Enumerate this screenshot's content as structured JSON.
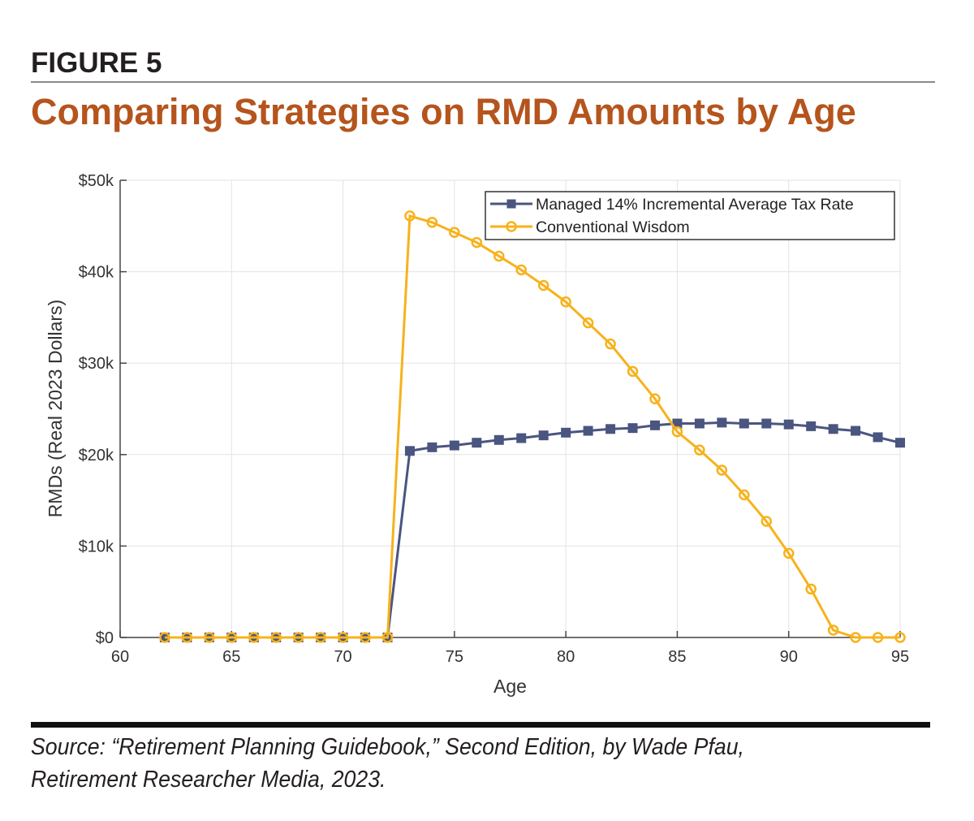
{
  "figure_label": "FIGURE 5",
  "title": "Comparing Strategies on RMD Amounts by Age",
  "source_line1": "Source: “Retirement Planning Guidebook,” Second Edition, by Wade Pfau,",
  "source_line2": "Retirement Researcher Media, 2023.",
  "chart_data": {
    "type": "line",
    "xlabel": "Age",
    "ylabel": "RMDs (Real 2023 Dollars)",
    "xlim": [
      60,
      95
    ],
    "ylim": [
      0,
      50000
    ],
    "xticks": [
      60,
      65,
      70,
      75,
      80,
      85,
      90,
      95
    ],
    "yticks": [
      0,
      10000,
      20000,
      30000,
      40000,
      50000
    ],
    "ytick_labels": [
      "$0",
      "$10k",
      "$20k",
      "$30k",
      "$40k",
      "$50k"
    ],
    "grid": true,
    "legend_position": "top-right",
    "x": [
      62,
      63,
      64,
      65,
      66,
      67,
      68,
      69,
      70,
      71,
      72,
      73,
      74,
      75,
      76,
      77,
      78,
      79,
      80,
      81,
      82,
      83,
      84,
      85,
      86,
      87,
      88,
      89,
      90,
      91,
      92,
      93,
      94,
      95
    ],
    "series": [
      {
        "name": "Managed 14% Incremental Average Tax Rate",
        "color": "#4a5580",
        "marker": "square",
        "values": [
          0,
          0,
          0,
          0,
          0,
          0,
          0,
          0,
          0,
          0,
          0,
          20400,
          20800,
          21000,
          21300,
          21600,
          21800,
          22100,
          22400,
          22600,
          22800,
          22900,
          23200,
          23400,
          23400,
          23500,
          23400,
          23400,
          23300,
          23100,
          22800,
          22600,
          21900,
          21300
        ]
      },
      {
        "name": "Conventional Wisdom",
        "color": "#f7b21b",
        "marker": "circle",
        "values": [
          0,
          0,
          0,
          0,
          0,
          0,
          0,
          0,
          0,
          0,
          0,
          46100,
          45400,
          44300,
          43200,
          41700,
          40200,
          38500,
          36700,
          34400,
          32100,
          29100,
          26100,
          22500,
          20500,
          18300,
          15600,
          12700,
          9200,
          5300,
          800,
          0,
          0,
          0
        ]
      }
    ]
  }
}
